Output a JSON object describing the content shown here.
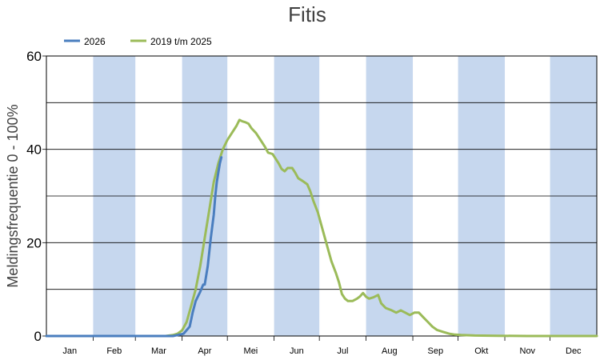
{
  "chart_data": {
    "type": "line",
    "title": "Fitis",
    "xlabel": "",
    "ylabel": "Meldingsfrequentie 0 - 100%",
    "ylim": [
      0,
      60
    ],
    "yticks": [
      0,
      20,
      40,
      60
    ],
    "grid": true,
    "legend_position": "top-left",
    "months": [
      "Jan",
      "Feb",
      "Mar",
      "Apr",
      "Mei",
      "Jun",
      "Jul",
      "Aug",
      "Sep",
      "Okt",
      "Nov",
      "Dec"
    ],
    "shaded_months": [
      "Feb",
      "Apr",
      "Jun",
      "Aug",
      "Okt",
      "Dec"
    ],
    "shade_color": "#c6d7ee",
    "series": [
      {
        "name": "2026",
        "color": "#4a7ebf",
        "points": [
          [
            1,
            0
          ],
          [
            15,
            0
          ],
          [
            30,
            0
          ],
          [
            45,
            0
          ],
          [
            60,
            0
          ],
          [
            70,
            0
          ],
          [
            80,
            0
          ],
          [
            85,
            0
          ],
          [
            88,
            0.2
          ],
          [
            92,
            0.5
          ],
          [
            96,
            2
          ],
          [
            98,
            5
          ],
          [
            100,
            7.5
          ],
          [
            103,
            9.5
          ],
          [
            105,
            11
          ],
          [
            106,
            11
          ],
          [
            108,
            15
          ],
          [
            110,
            21
          ],
          [
            112,
            26
          ],
          [
            113,
            30
          ],
          [
            114,
            33
          ],
          [
            115,
            35
          ],
          [
            116,
            37
          ],
          [
            117,
            38.3
          ]
        ]
      },
      {
        "name": "2019 t/m 2025",
        "color": "#9bbb59",
        "points": [
          [
            1,
            0
          ],
          [
            30,
            0
          ],
          [
            60,
            0
          ],
          [
            80,
            0
          ],
          [
            85,
            0.2
          ],
          [
            88,
            0.5
          ],
          [
            91,
            1.2
          ],
          [
            94,
            3
          ],
          [
            97,
            6.5
          ],
          [
            100,
            10
          ],
          [
            103,
            15
          ],
          [
            106,
            21
          ],
          [
            109,
            27
          ],
          [
            112,
            33
          ],
          [
            115,
            37
          ],
          [
            118,
            40
          ],
          [
            121,
            42
          ],
          [
            124,
            43.5
          ],
          [
            127,
            45
          ],
          [
            129,
            46.3
          ],
          [
            131,
            46
          ],
          [
            133,
            45.8
          ],
          [
            135,
            45.5
          ],
          [
            137,
            44.5
          ],
          [
            140,
            43.5
          ],
          [
            143,
            42
          ],
          [
            146,
            40.5
          ],
          [
            148,
            39.3
          ],
          [
            151,
            39
          ],
          [
            153,
            38
          ],
          [
            155,
            37
          ],
          [
            157,
            35.8
          ],
          [
            159,
            35.3
          ],
          [
            161,
            36
          ],
          [
            164,
            36
          ],
          [
            166,
            35
          ],
          [
            168,
            33.8
          ],
          [
            171,
            33.2
          ],
          [
            174,
            32.5
          ],
          [
            176,
            31
          ],
          [
            178,
            29
          ],
          [
            181,
            26.5
          ],
          [
            184,
            23
          ],
          [
            187,
            19.5
          ],
          [
            190,
            16
          ],
          [
            193,
            13.5
          ],
          [
            195,
            11.5
          ],
          [
            197,
            9
          ],
          [
            199,
            8
          ],
          [
            201,
            7.5
          ],
          [
            204,
            7.5
          ],
          [
            207,
            8
          ],
          [
            209,
            8.5
          ],
          [
            211,
            9.2
          ],
          [
            213,
            8.4
          ],
          [
            215,
            8
          ],
          [
            218,
            8.3
          ],
          [
            221,
            8.8
          ],
          [
            223,
            7
          ],
          [
            226,
            6
          ],
          [
            230,
            5.5
          ],
          [
            233,
            5
          ],
          [
            236,
            5.5
          ],
          [
            239,
            5
          ],
          [
            242,
            4.5
          ],
          [
            245,
            5
          ],
          [
            248,
            5
          ],
          [
            251,
            4
          ],
          [
            254,
            3
          ],
          [
            257,
            2
          ],
          [
            260,
            1.3
          ],
          [
            264,
            0.9
          ],
          [
            268,
            0.5
          ],
          [
            272,
            0.3
          ],
          [
            276,
            0.2
          ],
          [
            285,
            0.1
          ],
          [
            300,
            0.05
          ],
          [
            320,
            0
          ],
          [
            366,
            0
          ]
        ]
      }
    ]
  }
}
